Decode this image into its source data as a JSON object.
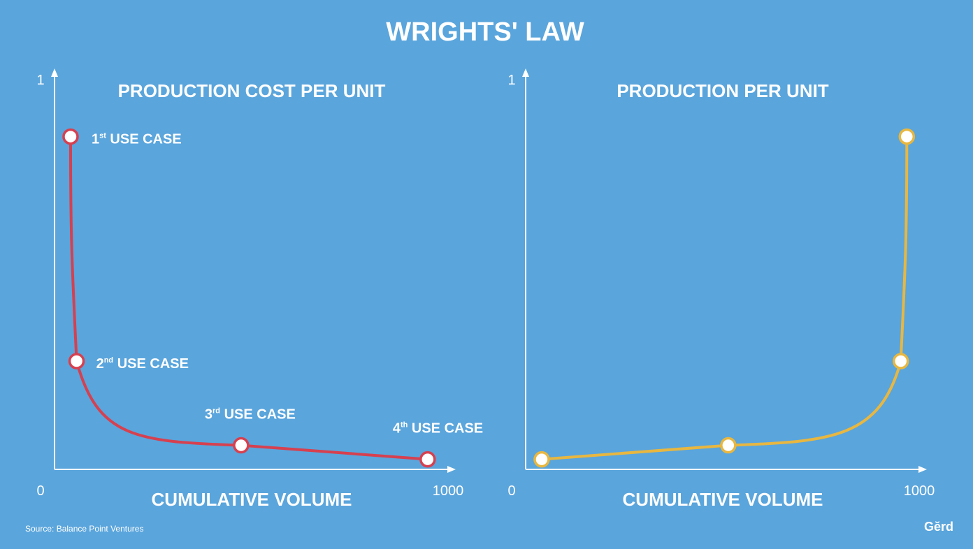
{
  "title": "WRIGHTS' LAW",
  "source": "Source: Balance Point Ventures",
  "brand": "Gĕrd",
  "colors": {
    "background": "#5aa5dc",
    "cost_curve": "#d6404f",
    "production_curve": "#e8b740",
    "axis": "#ffffff"
  },
  "chart_data": [
    {
      "type": "line",
      "title": "PRODUCTION COST PER UNIT",
      "xlabel": "CUMULATIVE VOLUME",
      "ylabel": "",
      "xlim": [
        0,
        1000
      ],
      "ylim": [
        0,
        1
      ],
      "x_tick_labels": [
        "0",
        "1000"
      ],
      "y_tick_labels": [
        "1"
      ],
      "series": [
        {
          "name": "cost",
          "color": "#d6404f",
          "points": [
            {
              "x": 40,
              "y": 0.83
            },
            {
              "x": 55,
              "y": 0.27
            },
            {
              "x": 465,
              "y": 0.06
            },
            {
              "x": 930,
              "y": 0.025
            }
          ]
        }
      ],
      "annotations": [
        {
          "prefix": "1",
          "sup": "st",
          "rest": " USE CASE",
          "point": 0
        },
        {
          "prefix": "2",
          "sup": "nd",
          "rest": " USE CASE",
          "point": 1
        },
        {
          "prefix": "3",
          "sup": "rd",
          "rest": " USE CASE",
          "point": 2
        },
        {
          "prefix": "4",
          "sup": "th",
          "rest": " USE CASE",
          "point": 3
        }
      ]
    },
    {
      "type": "line",
      "title": "PRODUCTION PER UNIT",
      "xlabel": "CUMULATIVE VOLUME",
      "ylabel": "",
      "xlim": [
        0,
        1000
      ],
      "ylim": [
        0,
        1
      ],
      "x_tick_labels": [
        "0",
        "1000"
      ],
      "y_tick_labels": [
        "1"
      ],
      "series": [
        {
          "name": "production",
          "color": "#e8b740",
          "points": [
            {
              "x": 40,
              "y": 0.025
            },
            {
              "x": 505,
              "y": 0.06
            },
            {
              "x": 935,
              "y": 0.27
            },
            {
              "x": 950,
              "y": 0.83
            }
          ]
        }
      ],
      "annotations": []
    }
  ]
}
